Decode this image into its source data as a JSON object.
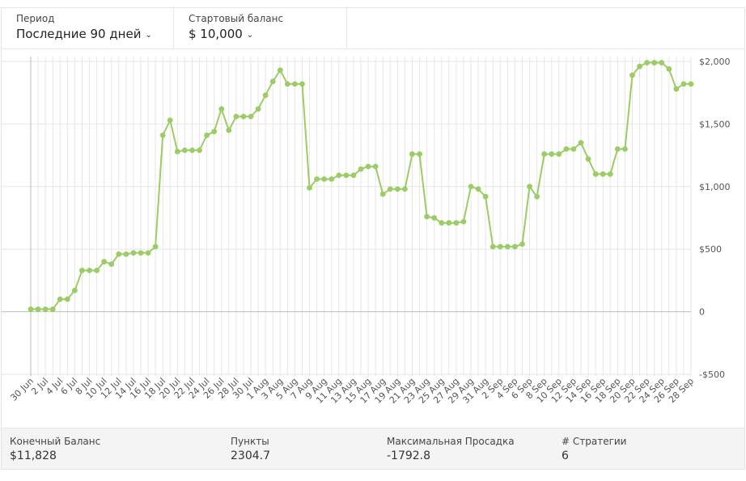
{
  "period": {
    "label": "Период",
    "value": "Последние 90 дней",
    "icon": "chevron-down-icon"
  },
  "start_balance": {
    "label": "Стартовый баланс",
    "value": "$ 10,000",
    "icon": "chevron-down-icon"
  },
  "stats": [
    {
      "label": "Конечный Баланс",
      "value": "$11,828"
    },
    {
      "label": "Пункты",
      "value": "2304.7"
    },
    {
      "label": "Максимальная Просадка",
      "value": "-1792.8"
    },
    {
      "label": "# Стратегии",
      "value": "6"
    }
  ],
  "colors": {
    "line": "#9ccc65",
    "grid": "#e6e6e6",
    "zero": "#bdbdbd"
  },
  "chart_data": {
    "type": "line",
    "title": "",
    "xlabel": "",
    "ylabel": "",
    "ylim": [
      -500,
      2000
    ],
    "yticks": [
      2000,
      1500,
      1000,
      500,
      0,
      -500
    ],
    "ytick_labels": [
      "$2,000",
      "$1,500",
      "$1,000",
      "$500",
      "0",
      "-$500"
    ],
    "grid": true,
    "x_tick_labels": [
      "30 Jun",
      "2 Jul",
      "4 Jul",
      "6 Jul",
      "8 Jul",
      "10 Jul",
      "12 Jul",
      "14 Jul",
      "16 Jul",
      "18 Jul",
      "20 Jul",
      "22 Jul",
      "24 Jul",
      "26 Jul",
      "28 Jul",
      "30 Jul",
      "1 Aug",
      "3 Aug",
      "5 Aug",
      "7 Aug",
      "9 Aug",
      "11 Aug",
      "13 Aug",
      "15 Aug",
      "17 Aug",
      "19 Aug",
      "21 Aug",
      "23 Aug",
      "25 Aug",
      "27 Aug",
      "29 Aug",
      "31 Aug",
      "2 Sep",
      "4 Sep",
      "6 Sep",
      "8 Sep",
      "10 Sep",
      "12 Sep",
      "14 Sep",
      "16 Sep",
      "18 Sep",
      "20 Sep",
      "22 Sep",
      "24 Sep",
      "26 Sep",
      "28 Sep"
    ],
    "series": [
      {
        "values": [
          20,
          20,
          20,
          20,
          100,
          100,
          170,
          330,
          330,
          330,
          400,
          380,
          460,
          460,
          470,
          470,
          470,
          520,
          1410,
          1530,
          1280,
          1290,
          1290,
          1290,
          1410,
          1440,
          1620,
          1450,
          1560,
          1560,
          1560,
          1620,
          1730,
          1840,
          1930,
          1820,
          1820,
          1820,
          990,
          1060,
          1060,
          1060,
          1090,
          1090,
          1090,
          1140,
          1160,
          1160,
          940,
          980,
          980,
          980,
          1260,
          1260,
          760,
          750,
          710,
          710,
          710,
          720,
          1000,
          980,
          920,
          520,
          520,
          520,
          520,
          540,
          1000,
          920,
          1260,
          1260,
          1260,
          1300,
          1300,
          1350,
          1220,
          1100,
          1100,
          1100,
          1300,
          1300,
          1890,
          1960,
          1990,
          1990,
          1990,
          1940,
          1780,
          1820,
          1820
        ]
      }
    ]
  }
}
